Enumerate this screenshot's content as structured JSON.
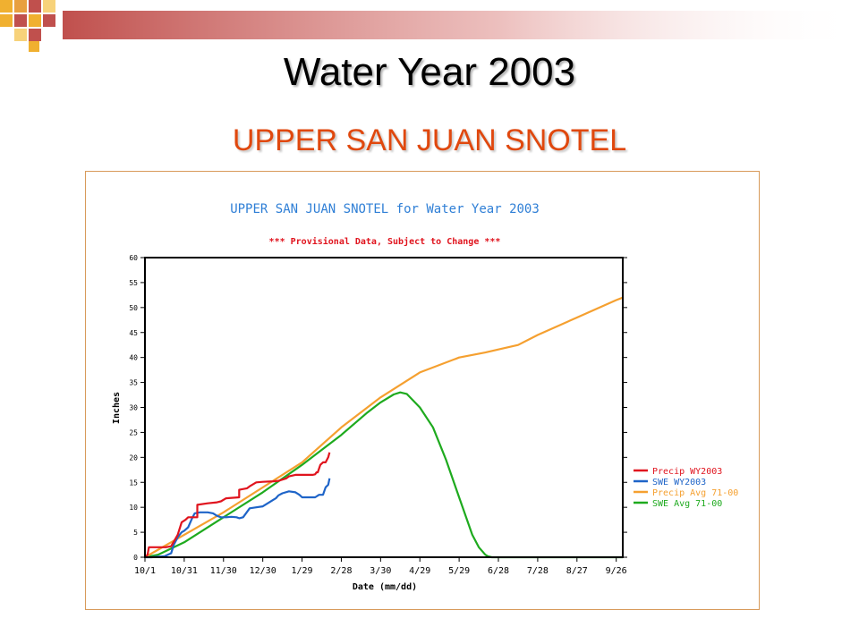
{
  "slide": {
    "title": "Water Year 2003",
    "subtitle": "UPPER SAN JUAN SNOTEL"
  },
  "colors": {
    "precip_wy2003": "#e0141e",
    "swe_wy2003": "#1e64c8",
    "precip_avg": "#f5a030",
    "swe_avg": "#1eaa1e",
    "chart_title": "#2f7fd6",
    "chart_subtitle": "#e0141e"
  },
  "chart_data": {
    "type": "line",
    "title": "UPPER SAN JUAN SNOTEL for Water Year 2003",
    "subtitle": "*** Provisional Data, Subject to Change ***",
    "xlabel": "Date (mm/dd)",
    "ylabel": "Inches",
    "x_tick_labels": [
      "10/1",
      "10/31",
      "11/30",
      "12/30",
      "1/29",
      "2/28",
      "3/30",
      "4/29",
      "5/29",
      "6/28",
      "7/28",
      "8/27",
      "9/26"
    ],
    "x_tick_days": [
      0,
      30,
      60,
      90,
      120,
      150,
      180,
      210,
      240,
      270,
      300,
      330,
      360
    ],
    "xlim": [
      0,
      365
    ],
    "ylim": [
      0,
      60
    ],
    "y_ticks": [
      0,
      5,
      10,
      15,
      20,
      25,
      30,
      35,
      40,
      45,
      50,
      55,
      60
    ],
    "grid": false,
    "legend_position": "right",
    "series": [
      {
        "name": "Precip WY2003",
        "color_key": "precip_wy2003",
        "x": [
          0,
          2,
          3,
          8,
          16,
          20,
          25,
          28,
          31,
          33,
          35,
          40,
          40,
          48,
          55,
          58,
          62,
          72,
          72,
          78,
          80,
          85,
          90,
          98,
          102,
          108,
          110,
          115,
          120,
          125,
          128,
          130,
          131,
          132,
          134,
          136,
          138,
          140,
          141
        ],
        "y": [
          0,
          0.5,
          2,
          2,
          2,
          2.2,
          4.5,
          7,
          7.5,
          8,
          8,
          8,
          10.5,
          10.8,
          11,
          11.2,
          11.8,
          12,
          13.5,
          13.8,
          14.2,
          15,
          15.1,
          15.2,
          15.3,
          15.8,
          16.2,
          16.5,
          16.5,
          16.5,
          16.5,
          16.6,
          17,
          17,
          18.5,
          19,
          19,
          20,
          21
        ]
      },
      {
        "name": "SWE WY2003",
        "color_key": "swe_wy2003",
        "x": [
          0,
          5,
          15,
          20,
          22,
          25,
          28,
          30,
          33,
          36,
          38,
          42,
          48,
          52,
          55,
          58,
          62,
          66,
          70,
          72,
          75,
          80,
          85,
          90,
          95,
          98,
          100,
          102,
          105,
          110,
          115,
          118,
          120,
          125,
          130,
          133,
          136,
          138,
          140,
          141
        ],
        "y": [
          0,
          0,
          0.2,
          0.8,
          2.5,
          4,
          5,
          5.3,
          6,
          7.8,
          8.8,
          9,
          9,
          8.8,
          8.3,
          8,
          8,
          8.1,
          8,
          7.8,
          8,
          9.8,
          10,
          10.2,
          11,
          11.5,
          11.8,
          12.4,
          12.8,
          13.2,
          13,
          12.5,
          12,
          12,
          12,
          12.5,
          12.5,
          14,
          14.5,
          15.8
        ]
      },
      {
        "name": "Precip Avg 71-00",
        "color_key": "precip_avg",
        "x": [
          0,
          60,
          120,
          150,
          180,
          210,
          240,
          260,
          270,
          285,
          300,
          330,
          360,
          365
        ],
        "y": [
          0,
          9,
          19,
          26,
          32,
          37,
          40,
          41,
          41.6,
          42.5,
          44.5,
          48,
          51.5,
          52
        ]
      },
      {
        "name": "SWE Avg 71-00",
        "color_key": "swe_avg",
        "x": [
          0,
          10,
          30,
          60,
          90,
          120,
          150,
          170,
          180,
          190,
          195,
          200,
          210,
          220,
          230,
          240,
          250,
          255,
          260,
          262,
          265,
          270,
          300,
          330,
          365
        ],
        "y": [
          0,
          0.5,
          3,
          8,
          13,
          18.5,
          24.5,
          29,
          31,
          32.6,
          33,
          32.7,
          30,
          26,
          19.5,
          12,
          4.5,
          2,
          0.5,
          0.2,
          0,
          0,
          0,
          0,
          0
        ]
      }
    ]
  }
}
